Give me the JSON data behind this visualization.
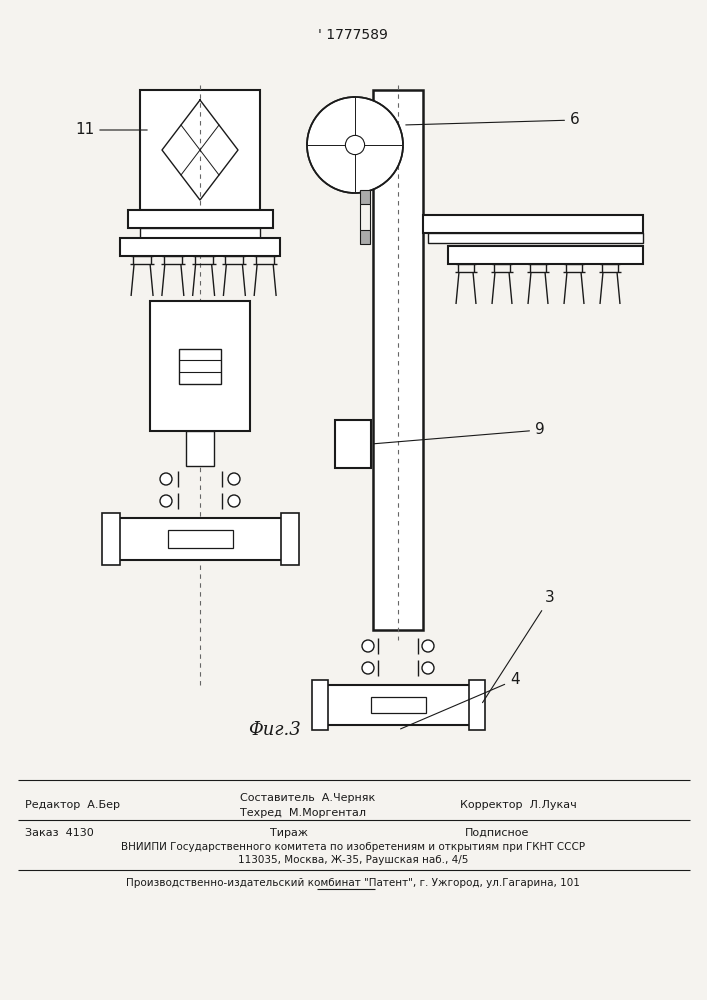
{
  "title": "' 1777589",
  "fig_label": "Φиг.3",
  "bg_color": "#f5f3ef",
  "line_color": "#1a1a1a",
  "footer": {
    "editor": "Редактор  А.Бер",
    "compiler1": "Составитель  А.Черняк",
    "compiler2": "Техред  М.Моргентал",
    "corrector": "Корректор  Л.Лукач",
    "order": "Заказ  4130",
    "tirazh": "Тираж",
    "podpisnoe": "Подписное",
    "vniiipi1": "ВНИИПИ Государственного комитета по изобретениям и открытиям при ГКНТ СССР",
    "vniiipi2": "113035, Москва, Ж-35, Раушская наб., 4/5",
    "patent": "Производственно-издательский комбинат \"Патент\", г. Ужгород, ул.Гагарина, 101"
  }
}
